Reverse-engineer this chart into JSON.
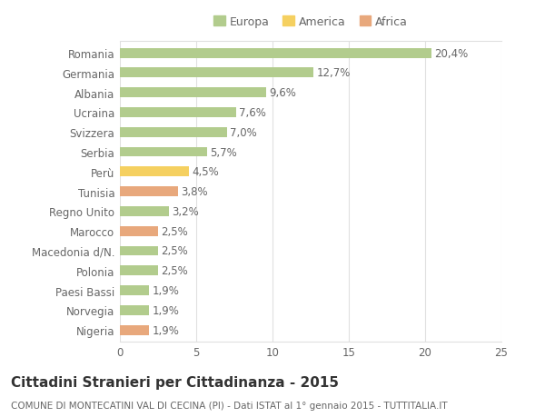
{
  "categories": [
    "Romania",
    "Germania",
    "Albania",
    "Ucraina",
    "Svizzera",
    "Serbia",
    "Perù",
    "Tunisia",
    "Regno Unito",
    "Marocco",
    "Macedonia d/N.",
    "Polonia",
    "Paesi Bassi",
    "Norvegia",
    "Nigeria"
  ],
  "values": [
    20.4,
    12.7,
    9.6,
    7.6,
    7.0,
    5.7,
    4.5,
    3.8,
    3.2,
    2.5,
    2.5,
    2.5,
    1.9,
    1.9,
    1.9
  ],
  "labels": [
    "20,4%",
    "12,7%",
    "9,6%",
    "7,6%",
    "7,0%",
    "5,7%",
    "4,5%",
    "3,8%",
    "3,2%",
    "2,5%",
    "2,5%",
    "2,5%",
    "1,9%",
    "1,9%",
    "1,9%"
  ],
  "continents": [
    "Europa",
    "Europa",
    "Europa",
    "Europa",
    "Europa",
    "Europa",
    "America",
    "Africa",
    "Europa",
    "Africa",
    "Europa",
    "Europa",
    "Europa",
    "Europa",
    "Africa"
  ],
  "colors": {
    "Europa": "#b2cc8d",
    "America": "#f5d060",
    "Africa": "#e8a87c"
  },
  "xlim": [
    0,
    25
  ],
  "xticks": [
    0,
    5,
    10,
    15,
    20,
    25
  ],
  "title": "Cittadini Stranieri per Cittadinanza - 2015",
  "subtitle": "COMUNE DI MONTECATINI VAL DI CECINA (PI) - Dati ISTAT al 1° gennaio 2015 - TUTTITALIA.IT",
  "background_color": "#ffffff",
  "grid_color": "#e0e0e0",
  "bar_height": 0.5,
  "label_fontsize": 8.5,
  "ylabel_fontsize": 8.5,
  "xlabel_fontsize": 8.5,
  "title_fontsize": 11,
  "subtitle_fontsize": 7.5,
  "legend_fontsize": 9
}
